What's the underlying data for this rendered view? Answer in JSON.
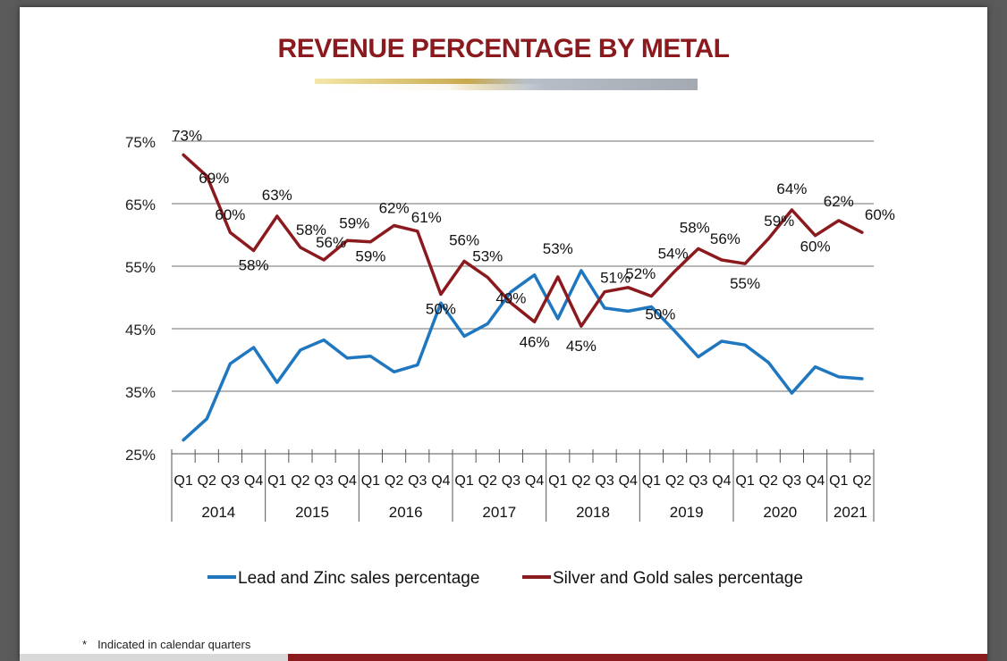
{
  "title": "REVENUE PERCENTAGE BY METAL",
  "footnote": {
    "marker": "*",
    "text": "Indicated in calendar quarters"
  },
  "colors": {
    "title": "#8b1a1f",
    "lead_zinc": "#1f77c0",
    "silver_gold": "#8b1a1f",
    "grid": "#8c8c8c"
  },
  "chart_data": {
    "type": "line",
    "title": "REVENUE PERCENTAGE BY METAL",
    "xlabel": "",
    "ylabel": "",
    "ylim": [
      25,
      75
    ],
    "yticks": [
      "75%",
      "65%",
      "55%",
      "45%",
      "35%",
      "25%"
    ],
    "ytick_values": [
      75,
      65,
      55,
      45,
      35,
      25
    ],
    "grid": true,
    "legend_position": "bottom",
    "quarters": [
      "Q1",
      "Q2",
      "Q3",
      "Q4",
      "Q1",
      "Q2",
      "Q3",
      "Q4",
      "Q1",
      "Q2",
      "Q3",
      "Q4",
      "Q1",
      "Q2",
      "Q3",
      "Q4",
      "Q1",
      "Q2",
      "Q3",
      "Q4",
      "Q1",
      "Q2",
      "Q3",
      "Q4",
      "Q1",
      "Q2",
      "Q3",
      "Q4",
      "Q1",
      "Q2"
    ],
    "years": [
      {
        "label": "2014",
        "count": 4
      },
      {
        "label": "2015",
        "count": 4
      },
      {
        "label": "2016",
        "count": 4
      },
      {
        "label": "2017",
        "count": 4
      },
      {
        "label": "2018",
        "count": 4
      },
      {
        "label": "2019",
        "count": 4
      },
      {
        "label": "2020",
        "count": 4
      },
      {
        "label": "2021",
        "count": 2
      }
    ],
    "series": [
      {
        "name": "Lead and Zinc sales percentage",
        "color": "#1f77c0",
        "values": [
          27.2,
          30.6,
          39.4,
          42.0,
          36.4,
          41.6,
          43.2,
          40.3,
          40.6,
          38.1,
          39.2,
          49.1,
          43.8,
          45.8,
          50.9,
          53.6,
          46.6,
          54.3,
          48.3,
          47.8,
          48.5,
          44.6,
          40.5,
          43.0,
          42.4,
          39.6,
          34.7,
          38.9,
          37.3,
          37.0
        ],
        "labels": [
          null,
          null,
          null,
          null,
          null,
          null,
          null,
          null,
          null,
          null,
          null,
          null,
          null,
          null,
          null,
          null,
          null,
          null,
          null,
          null,
          null,
          null,
          null,
          null,
          null,
          null,
          null,
          null,
          null,
          null
        ]
      },
      {
        "name": "Silver and Gold sales percentage",
        "color": "#8b1a1f",
        "values": [
          72.8,
          69.4,
          60.4,
          57.5,
          63.0,
          58.0,
          56.0,
          59.1,
          58.9,
          61.5,
          60.6,
          50.5,
          55.8,
          53.2,
          49.1,
          46.1,
          53.3,
          45.4,
          50.9,
          51.6,
          50.2,
          54.2,
          57.8,
          56.0,
          55.4,
          59.4,
          64.0,
          59.9,
          62.3,
          60.4
        ],
        "labels": [
          "73%",
          "69%",
          "60%",
          "58%",
          "63%",
          "58%",
          "56%",
          "59%",
          "59%",
          "62%",
          "61%",
          "50%",
          "56%",
          "53%",
          "49%",
          "46%",
          "53%",
          "45%",
          "51%",
          "52%",
          "50%",
          "54%",
          "58%",
          "56%",
          "55%",
          "59%",
          "64%",
          "60%",
          "62%",
          "60%"
        ]
      }
    ]
  }
}
